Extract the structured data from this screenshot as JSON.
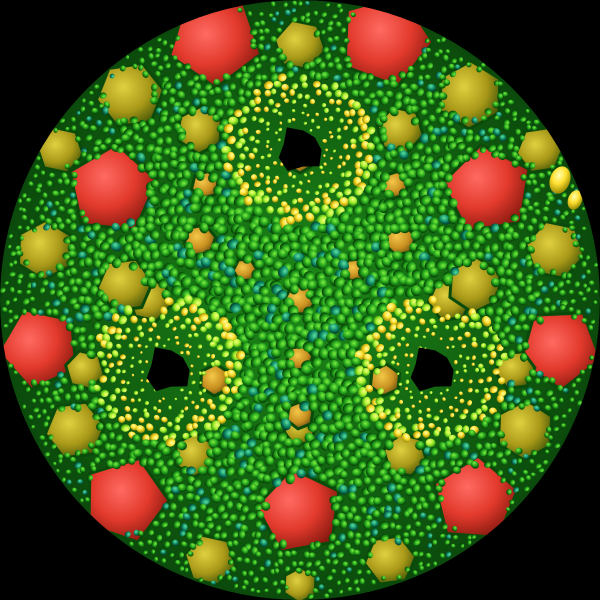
{
  "image": {
    "description_kind": "hyperbolic-tiling-fractal",
    "background_color": "#000000",
    "palette": {
      "deep_green": "#0a5a10",
      "green": "#1f9a1a",
      "bright_green": "#55e028",
      "lime": "#b6f040",
      "yellow_green": "#a8a818",
      "olive_gold": "#c8b020",
      "orange": "#d89a28",
      "red": "#e03a2a",
      "hot_pink_red": "#ff5a5a",
      "yellow": "#ffe030"
    }
  }
}
